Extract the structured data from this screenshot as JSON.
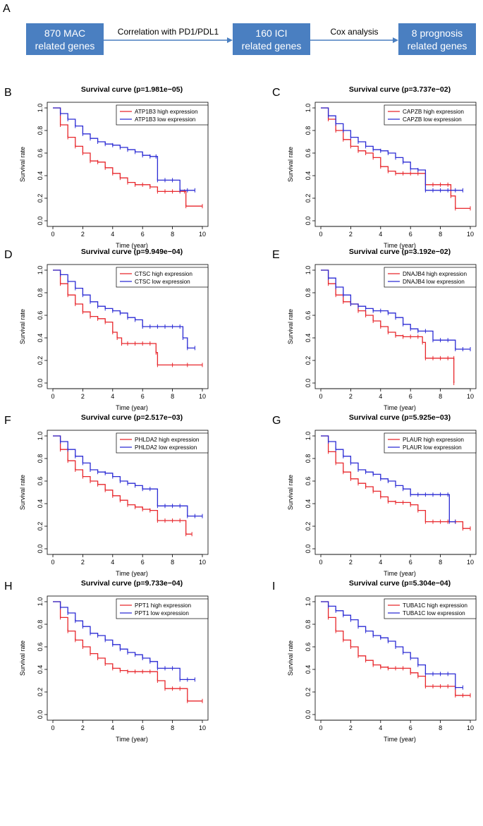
{
  "panel_a": {
    "letter": "A",
    "boxes": [
      {
        "line1": "870 MAC",
        "line2": "related genes"
      },
      {
        "line1": "160 ICI",
        "line2": "related genes"
      },
      {
        "line1": "8 prognosis",
        "line2": "related genes"
      }
    ],
    "arrows": [
      "Correlation with PD1/PDL1",
      "Cox analysis"
    ]
  },
  "colors": {
    "high": "#e8262b",
    "low": "#2a2ad4",
    "box": "#4a7fc1"
  },
  "chart_data": [
    {
      "letter": "B",
      "type": "line",
      "title": "Survival curve (p=1.981e−05)",
      "xlabel": "Time (year)",
      "ylabel": "Survival rate",
      "xlim": [
        0,
        10
      ],
      "ylim": [
        0,
        1
      ],
      "xticks": [
        "0",
        "2",
        "4",
        "6",
        "8",
        "10"
      ],
      "yticks": [
        "0.0",
        "0.2",
        "0.4",
        "0.6",
        "0.8",
        "1.0"
      ],
      "legend": "top-right",
      "series": [
        {
          "name": "ATP1B3 high expression",
          "group": "high",
          "x": [
            0,
            0.5,
            1,
            1.5,
            2,
            2.5,
            3,
            3.5,
            4,
            4.5,
            5,
            5.5,
            6,
            6.5,
            7,
            7.5,
            8,
            8.5,
            8.8,
            8.9,
            10
          ],
          "y": [
            1,
            0.85,
            0.74,
            0.66,
            0.6,
            0.53,
            0.52,
            0.47,
            0.42,
            0.38,
            0.34,
            0.32,
            0.32,
            0.3,
            0.26,
            0.26,
            0.26,
            0.26,
            0.26,
            0.13,
            0.13
          ]
        },
        {
          "name": "ATP1B3 low expression",
          "group": "low",
          "x": [
            0,
            0.5,
            1,
            1.5,
            2,
            2.5,
            3,
            3.5,
            4,
            4.5,
            5,
            5.5,
            6,
            6.5,
            6.9,
            7,
            7.5,
            8,
            8.5,
            9,
            9.5
          ],
          "y": [
            1,
            0.95,
            0.9,
            0.84,
            0.77,
            0.73,
            0.7,
            0.68,
            0.67,
            0.65,
            0.63,
            0.61,
            0.58,
            0.57,
            0.57,
            0.36,
            0.36,
            0.36,
            0.27,
            0.27,
            0.27
          ]
        }
      ]
    },
    {
      "letter": "C",
      "type": "line",
      "title": "Survival curve (p=3.737e−02)",
      "xlabel": "Time (year)",
      "ylabel": "Survival rate",
      "xlim": [
        0,
        10
      ],
      "ylim": [
        0,
        1
      ],
      "xticks": [
        "0",
        "2",
        "4",
        "6",
        "8",
        "10"
      ],
      "yticks": [
        "0.0",
        "0.2",
        "0.4",
        "0.6",
        "0.8",
        "1.0"
      ],
      "legend": "top-right",
      "series": [
        {
          "name": "CAPZB high expression",
          "group": "high",
          "x": [
            0,
            0.5,
            1,
            1.5,
            2,
            2.5,
            3,
            3.5,
            4,
            4.5,
            5,
            5.5,
            6,
            6.5,
            7,
            7.5,
            8,
            8.5,
            8.7,
            9,
            10
          ],
          "y": [
            1,
            0.9,
            0.8,
            0.72,
            0.66,
            0.62,
            0.6,
            0.56,
            0.48,
            0.44,
            0.42,
            0.42,
            0.42,
            0.42,
            0.32,
            0.32,
            0.32,
            0.32,
            0.22,
            0.11,
            0.11
          ]
        },
        {
          "name": "CAPZB low expression",
          "group": "low",
          "x": [
            0,
            0.5,
            1,
            1.5,
            2,
            2.5,
            3,
            3.5,
            4,
            4.5,
            5,
            5.5,
            6,
            6.5,
            7,
            7.5,
            8,
            8.5,
            9,
            9.5
          ],
          "y": [
            1,
            0.93,
            0.86,
            0.8,
            0.74,
            0.7,
            0.66,
            0.63,
            0.62,
            0.6,
            0.56,
            0.52,
            0.46,
            0.45,
            0.27,
            0.27,
            0.27,
            0.27,
            0.27,
            0.27
          ]
        }
      ]
    },
    {
      "letter": "D",
      "type": "line",
      "title": "Survival curve (p=9.949e−04)",
      "xlabel": "Time (year)",
      "ylabel": "Survival rate",
      "xlim": [
        0,
        10
      ],
      "ylim": [
        0,
        1
      ],
      "xticks": [
        "0",
        "2",
        "4",
        "6",
        "8",
        "10"
      ],
      "yticks": [
        "0.0",
        "0.2",
        "0.4",
        "0.6",
        "0.8",
        "1.0"
      ],
      "legend": "top-right",
      "series": [
        {
          "name": "CTSC high expression",
          "group": "high",
          "x": [
            0,
            0.5,
            1,
            1.5,
            2,
            2.5,
            3,
            3.5,
            4,
            4.3,
            4.6,
            5,
            5.5,
            6,
            6.5,
            6.9,
            7,
            8,
            9,
            10
          ],
          "y": [
            1,
            0.88,
            0.78,
            0.7,
            0.63,
            0.59,
            0.57,
            0.54,
            0.45,
            0.4,
            0.35,
            0.35,
            0.35,
            0.35,
            0.35,
            0.27,
            0.16,
            0.16,
            0.16,
            0.16
          ]
        },
        {
          "name": "CTSC low expression",
          "group": "low",
          "x": [
            0,
            0.5,
            1,
            1.5,
            2,
            2.5,
            3,
            3.5,
            4,
            4.5,
            5,
            5.5,
            6,
            6.5,
            7,
            7.5,
            8,
            8.5,
            8.7,
            9,
            9.5
          ],
          "y": [
            1,
            0.96,
            0.9,
            0.84,
            0.78,
            0.72,
            0.68,
            0.66,
            0.64,
            0.62,
            0.58,
            0.56,
            0.5,
            0.5,
            0.5,
            0.5,
            0.5,
            0.5,
            0.4,
            0.31,
            0.31
          ]
        }
      ]
    },
    {
      "letter": "E",
      "type": "line",
      "title": "Survival curve (p=3.192e−02)",
      "xlabel": "Time (year)",
      "ylabel": "Survival rate",
      "xlim": [
        0,
        10
      ],
      "ylim": [
        0,
        1
      ],
      "xticks": [
        "0",
        "2",
        "4",
        "6",
        "8",
        "10"
      ],
      "yticks": [
        "0.0",
        "0.2",
        "0.4",
        "0.6",
        "0.8",
        "1.0"
      ],
      "legend": "top-right",
      "series": [
        {
          "name": "DNAJB4 high expression",
          "group": "high",
          "x": [
            0,
            0.5,
            1,
            1.5,
            2,
            2.5,
            3,
            3.5,
            4,
            4.5,
            5,
            5.5,
            6,
            6.5,
            6.8,
            7,
            7.5,
            8,
            8.5,
            8.9,
            8.9
          ],
          "y": [
            1,
            0.88,
            0.78,
            0.72,
            0.7,
            0.64,
            0.6,
            0.55,
            0.5,
            0.45,
            0.42,
            0.41,
            0.41,
            0.41,
            0.36,
            0.22,
            0.22,
            0.22,
            0.22,
            0.22,
            0
          ]
        },
        {
          "name": "DNAJB4 low expression",
          "group": "low",
          "x": [
            0,
            0.5,
            1,
            1.5,
            2,
            2.5,
            3,
            3.5,
            4,
            4.5,
            5,
            5.5,
            6,
            6.5,
            7,
            7.5,
            8,
            8.5,
            9,
            9.5,
            10
          ],
          "y": [
            1,
            0.93,
            0.85,
            0.78,
            0.7,
            0.68,
            0.66,
            0.64,
            0.64,
            0.62,
            0.58,
            0.52,
            0.48,
            0.46,
            0.46,
            0.38,
            0.38,
            0.38,
            0.3,
            0.3,
            0.3
          ]
        }
      ]
    },
    {
      "letter": "F",
      "type": "line",
      "title": "Survival curve (p=2.517e−03)",
      "xlabel": "Time (year)",
      "ylabel": "Survival rate",
      "xlim": [
        0,
        10
      ],
      "ylim": [
        0,
        1
      ],
      "xticks": [
        "0",
        "2",
        "4",
        "6",
        "8",
        "10"
      ],
      "yticks": [
        "0.0",
        "0.2",
        "0.4",
        "0.6",
        "0.8",
        "1.0"
      ],
      "legend": "top-right",
      "series": [
        {
          "name": "PHLDA2 high expression",
          "group": "high",
          "x": [
            0,
            0.5,
            1,
            1.5,
            2,
            2.5,
            3,
            3.5,
            4,
            4.5,
            5,
            5.5,
            6,
            6.5,
            7,
            7.5,
            8,
            8.5,
            8.9,
            9.3
          ],
          "y": [
            1,
            0.88,
            0.78,
            0.7,
            0.64,
            0.6,
            0.57,
            0.52,
            0.47,
            0.43,
            0.39,
            0.37,
            0.35,
            0.34,
            0.25,
            0.25,
            0.25,
            0.25,
            0.13,
            0.13
          ]
        },
        {
          "name": "PHLDA2 low expression",
          "group": "low",
          "x": [
            0,
            0.5,
            1,
            1.5,
            2,
            2.5,
            3,
            3.5,
            4,
            4.5,
            5,
            5.5,
            6,
            6.5,
            7,
            7.5,
            8,
            8.5,
            9,
            9.5,
            10
          ],
          "y": [
            1,
            0.95,
            0.88,
            0.82,
            0.76,
            0.7,
            0.68,
            0.67,
            0.64,
            0.6,
            0.58,
            0.56,
            0.53,
            0.53,
            0.38,
            0.38,
            0.38,
            0.38,
            0.29,
            0.29,
            0.29
          ]
        }
      ]
    },
    {
      "letter": "G",
      "type": "line",
      "title": "Survival curve (p=5.925e−03)",
      "xlabel": "Time (year)",
      "ylabel": "Survival rate",
      "xlim": [
        0,
        10
      ],
      "ylim": [
        0,
        1
      ],
      "xticks": [
        "0",
        "2",
        "4",
        "6",
        "8",
        "10"
      ],
      "yticks": [
        "0.0",
        "0.2",
        "0.4",
        "0.6",
        "0.8",
        "1.0"
      ],
      "legend": "top-right",
      "series": [
        {
          "name": "PLAUR high expression",
          "group": "high",
          "x": [
            0,
            0.5,
            1,
            1.5,
            2,
            2.5,
            3,
            3.5,
            4,
            4.5,
            5,
            5.5,
            6,
            6.5,
            7,
            7.5,
            8,
            8.5,
            9,
            9.5,
            10
          ],
          "y": [
            1,
            0.86,
            0.76,
            0.68,
            0.62,
            0.58,
            0.55,
            0.51,
            0.46,
            0.42,
            0.41,
            0.41,
            0.39,
            0.34,
            0.24,
            0.24,
            0.24,
            0.24,
            0.24,
            0.18,
            0.18
          ]
        },
        {
          "name": "PLAUR low expression",
          "group": "low",
          "x": [
            0,
            0.5,
            1,
            1.5,
            2,
            2.5,
            3,
            3.5,
            4,
            4.5,
            5,
            5.5,
            6,
            6.5,
            7,
            7.5,
            8,
            8.5,
            8.6,
            9
          ],
          "y": [
            1,
            0.95,
            0.88,
            0.82,
            0.76,
            0.7,
            0.68,
            0.66,
            0.62,
            0.6,
            0.56,
            0.53,
            0.48,
            0.48,
            0.48,
            0.48,
            0.48,
            0.48,
            0.24,
            0.24
          ]
        }
      ]
    },
    {
      "letter": "H",
      "type": "line",
      "title": "Survival curve (p=9.733e−04)",
      "xlabel": "Time (year)",
      "ylabel": "Survival rate",
      "xlim": [
        0,
        10
      ],
      "ylim": [
        0,
        1
      ],
      "xticks": [
        "0",
        "2",
        "4",
        "6",
        "8",
        "10"
      ],
      "yticks": [
        "0.0",
        "0.2",
        "0.4",
        "0.6",
        "0.8",
        "1.0"
      ],
      "legend": "top-right",
      "series": [
        {
          "name": "PPT1 high expression",
          "group": "high",
          "x": [
            0,
            0.5,
            1,
            1.5,
            2,
            2.5,
            3,
            3.5,
            4,
            4.5,
            5,
            5.5,
            6,
            6.5,
            7,
            7.5,
            8,
            8.5,
            9,
            10
          ],
          "y": [
            1,
            0.86,
            0.74,
            0.66,
            0.6,
            0.54,
            0.5,
            0.45,
            0.41,
            0.39,
            0.38,
            0.38,
            0.38,
            0.38,
            0.3,
            0.23,
            0.23,
            0.23,
            0.12,
            0.12
          ]
        },
        {
          "name": "PPT1 low expression",
          "group": "low",
          "x": [
            0,
            0.5,
            1,
            1.5,
            2,
            2.5,
            3,
            3.5,
            4,
            4.5,
            5,
            5.5,
            6,
            6.5,
            7,
            7.5,
            8,
            8.5,
            9,
            9.5
          ],
          "y": [
            1,
            0.95,
            0.9,
            0.83,
            0.78,
            0.72,
            0.7,
            0.66,
            0.62,
            0.58,
            0.55,
            0.53,
            0.5,
            0.47,
            0.41,
            0.41,
            0.41,
            0.31,
            0.31,
            0.31
          ]
        }
      ]
    },
    {
      "letter": "I",
      "type": "line",
      "title": "Survival curve (p=5.304e−04)",
      "xlabel": "Time (year)",
      "ylabel": "Survival rate",
      "xlim": [
        0,
        10
      ],
      "ylim": [
        0,
        1
      ],
      "xticks": [
        "0",
        "2",
        "4",
        "6",
        "8",
        "10"
      ],
      "yticks": [
        "0.0",
        "0.2",
        "0.4",
        "0.6",
        "0.8",
        "1.0"
      ],
      "legend": "top-right",
      "series": [
        {
          "name": "TUBA1C high expression",
          "group": "high",
          "x": [
            0,
            0.5,
            1,
            1.5,
            2,
            2.5,
            3,
            3.5,
            4,
            4.5,
            5,
            5.5,
            6,
            6.5,
            7,
            7.5,
            8,
            8.5,
            9,
            9.5,
            10
          ],
          "y": [
            1,
            0.86,
            0.74,
            0.66,
            0.6,
            0.52,
            0.48,
            0.44,
            0.42,
            0.41,
            0.41,
            0.41,
            0.37,
            0.34,
            0.25,
            0.25,
            0.25,
            0.25,
            0.17,
            0.17,
            0.17
          ]
        },
        {
          "name": "TUBA1C low expression",
          "group": "low",
          "x": [
            0,
            0.5,
            1,
            1.5,
            2,
            2.5,
            3,
            3.5,
            4,
            4.5,
            5,
            5.5,
            6,
            6.5,
            7,
            7.5,
            8,
            8.5,
            9,
            9.5
          ],
          "y": [
            1,
            0.96,
            0.92,
            0.88,
            0.84,
            0.78,
            0.74,
            0.7,
            0.68,
            0.65,
            0.6,
            0.55,
            0.5,
            0.44,
            0.36,
            0.36,
            0.36,
            0.36,
            0.24,
            0.24
          ]
        }
      ]
    }
  ]
}
